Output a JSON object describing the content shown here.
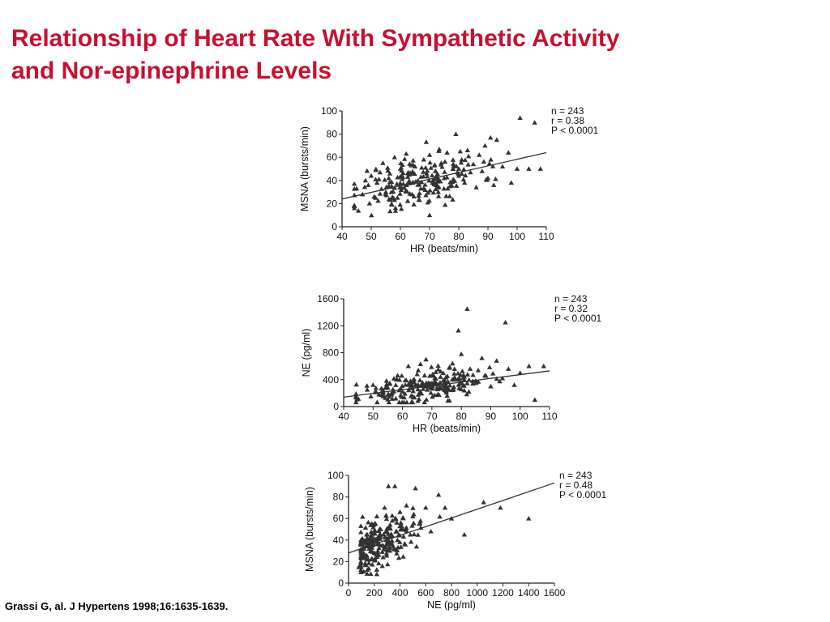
{
  "slide": {
    "title_line1": "Relationship of Heart Rate With Sympathetic Activity",
    "title_line2": "and Nor-epinephrine Levels",
    "citation": "Grassi G, al. J Hypertens 1998;16:1635-1639.",
    "title_color": "#c8102e"
  },
  "chart_data": [
    {
      "type": "scatter",
      "xlabel": "HR (beats/min)",
      "ylabel": "MSNA (bursts/min)",
      "xlim": [
        40,
        110
      ],
      "ylim": [
        0,
        100
      ],
      "xticks": [
        40,
        50,
        60,
        70,
        80,
        90,
        100,
        110
      ],
      "yticks": [
        0,
        20,
        40,
        60,
        80,
        100
      ],
      "stats": {
        "n": "n = 243",
        "r": "r = 0.38",
        "p": "P < 0.0001"
      },
      "regression": {
        "x": [
          40,
          110
        ],
        "y": [
          24,
          64
        ]
      },
      "seed": 11,
      "points": [
        [
          45,
          33
        ],
        [
          47,
          28
        ],
        [
          48,
          40
        ],
        [
          49,
          36
        ],
        [
          50,
          44
        ],
        [
          51,
          26
        ],
        [
          52,
          38
        ],
        [
          53,
          47
        ],
        [
          54,
          55
        ],
        [
          55,
          30
        ],
        [
          56,
          42
        ],
        [
          57,
          35
        ],
        [
          58,
          60
        ],
        [
          59,
          25
        ],
        [
          60,
          50
        ],
        [
          61,
          37
        ],
        [
          62,
          63
        ],
        [
          63,
          45
        ],
        [
          64,
          28
        ],
        [
          65,
          52
        ],
        [
          66,
          40
        ],
        [
          67,
          33
        ],
        [
          68,
          58
        ],
        [
          69,
          46
        ],
        [
          70,
          10
        ],
        [
          70,
          62
        ],
        [
          71,
          38
        ],
        [
          72,
          48
        ],
        [
          73,
          30
        ],
        [
          74,
          55
        ],
        [
          75,
          42
        ],
        [
          76,
          64
        ],
        [
          77,
          35
        ],
        [
          78,
          50
        ],
        [
          79,
          80
        ],
        [
          80,
          44
        ],
        [
          81,
          58
        ],
        [
          82,
          38
        ],
        [
          83,
          66
        ],
        [
          84,
          47
        ],
        [
          85,
          54
        ],
        [
          86,
          34
        ],
        [
          87,
          62
        ],
        [
          88,
          48
        ],
        [
          89,
          70
        ],
        [
          90,
          42
        ],
        [
          91,
          58
        ],
        [
          92,
          36
        ],
        [
          93,
          75
        ],
        [
          95,
          52
        ],
        [
          97,
          64
        ],
        [
          98,
          38
        ],
        [
          100,
          50
        ],
        [
          101,
          94
        ],
        [
          104,
          50
        ],
        [
          106,
          90
        ],
        [
          108,
          50
        ]
      ]
    },
    {
      "type": "scatter",
      "xlabel": "HR (beats/min)",
      "ylabel": "NE (pg/ml)",
      "xlim": [
        40,
        110
      ],
      "ylim": [
        0,
        1600
      ],
      "xticks": [
        40,
        50,
        60,
        70,
        80,
        90,
        100,
        110
      ],
      "yticks": [
        0,
        400,
        800,
        1200,
        1600
      ],
      "stats": {
        "n": "n = 243",
        "r": "r = 0.32",
        "p": "P < 0.0001"
      },
      "regression": {
        "x": [
          40,
          110
        ],
        "y": [
          140,
          530
        ]
      },
      "seed": 23,
      "points": [
        [
          48,
          250
        ],
        [
          50,
          320
        ],
        [
          52,
          180
        ],
        [
          55,
          280
        ],
        [
          58,
          400
        ],
        [
          60,
          220
        ],
        [
          62,
          600
        ],
        [
          63,
          330
        ],
        [
          65,
          480
        ],
        [
          67,
          260
        ],
        [
          68,
          700
        ],
        [
          70,
          350
        ],
        [
          72,
          180
        ],
        [
          73,
          520
        ],
        [
          75,
          300
        ],
        [
          77,
          640
        ],
        [
          78,
          410
        ],
        [
          79,
          1130
        ],
        [
          80,
          780
        ],
        [
          81,
          240
        ],
        [
          82,
          1450
        ],
        [
          83,
          560
        ],
        [
          85,
          350
        ],
        [
          87,
          720
        ],
        [
          88,
          460
        ],
        [
          90,
          300
        ],
        [
          92,
          680
        ],
        [
          94,
          420
        ],
        [
          95,
          1250
        ],
        [
          96,
          560
        ],
        [
          98,
          320
        ],
        [
          100,
          500
        ],
        [
          103,
          600
        ],
        [
          105,
          100
        ],
        [
          108,
          600
        ]
      ]
    },
    {
      "type": "scatter",
      "xlabel": "NE (pg/ml)",
      "ylabel": "MSNA (bursts/min)",
      "xlim": [
        0,
        1600
      ],
      "ylim": [
        0,
        100
      ],
      "xticks": [
        0,
        200,
        400,
        600,
        800,
        1000,
        1200,
        1400,
        1600
      ],
      "yticks": [
        0,
        20,
        40,
        60,
        80,
        100
      ],
      "stats": {
        "n": "n = 243",
        "r": "r = 0.48",
        "p": "P < 0.0001"
      },
      "regression": {
        "x": [
          0,
          1600
        ],
        "y": [
          28,
          93
        ]
      },
      "seed": 37,
      "points": [
        [
          80,
          15
        ],
        [
          100,
          25
        ],
        [
          120,
          32
        ],
        [
          140,
          45
        ],
        [
          160,
          38
        ],
        [
          180,
          55
        ],
        [
          200,
          28
        ],
        [
          220,
          62
        ],
        [
          240,
          42
        ],
        [
          260,
          35
        ],
        [
          280,
          70
        ],
        [
          300,
          48
        ],
        [
          310,
          90
        ],
        [
          320,
          30
        ],
        [
          340,
          58
        ],
        [
          360,
          90
        ],
        [
          380,
          40
        ],
        [
          400,
          66
        ],
        [
          420,
          50
        ],
        [
          450,
          72
        ],
        [
          480,
          45
        ],
        [
          500,
          62
        ],
        [
          520,
          88
        ],
        [
          550,
          55
        ],
        [
          600,
          70
        ],
        [
          640,
          48
        ],
        [
          700,
          82
        ],
        [
          750,
          70
        ],
        [
          800,
          60
        ],
        [
          900,
          45
        ],
        [
          1050,
          75
        ],
        [
          1180,
          70
        ],
        [
          1400,
          60
        ]
      ]
    }
  ]
}
